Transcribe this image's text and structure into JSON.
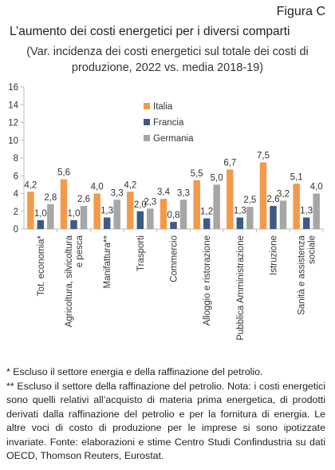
{
  "header": {
    "figure_label": "Figura C",
    "title": "L’aumento dei costi energetici per i diversi comparti",
    "subtitle_lines": [
      "(Var. incidenza dei costi energetici sul totale dei costi di",
      "produzione, 2022 vs. media 2018-19)"
    ]
  },
  "chart_data": {
    "type": "bar",
    "categories": [
      "Tot. economia*",
      "Agricoltura, silvicoltura e pesca",
      "Manifattura**",
      "Trasporti",
      "Commercio",
      "Alloggio e ristorazione",
      "Pubblica Amministrazione",
      "Istruzione",
      "Sanità e assistenza sociale"
    ],
    "series": [
      {
        "name": "Italia",
        "color": "#F39A4A",
        "values": [
          4.2,
          5.6,
          4.0,
          4.2,
          3.4,
          5.5,
          6.7,
          7.5,
          5.1
        ]
      },
      {
        "name": "Francia",
        "color": "#3E5A84",
        "values": [
          1.0,
          1.0,
          1.3,
          2.0,
          0.8,
          1.2,
          1.3,
          2.6,
          1.3
        ]
      },
      {
        "name": "Germania",
        "color": "#A6A6A6",
        "values": [
          2.8,
          2.6,
          3.3,
          2.3,
          3.3,
          5.0,
          2.5,
          3.2,
          4.0
        ]
      }
    ],
    "data_labels": [
      [
        "4,2",
        "5,6",
        "4,0",
        "4,2",
        "3,4",
        "5,5",
        "6,7",
        "7,5",
        "5,1"
      ],
      [
        "1,0",
        "1,0",
        "1,3",
        "2,0",
        "0,8",
        "1,2",
        "1,3",
        "2,6",
        "1,3"
      ],
      [
        "2,8",
        "2,6",
        "3,3",
        "2,3",
        "3,3",
        "5,0",
        "2,5",
        "3,2",
        "4,0"
      ]
    ],
    "ylim": [
      0,
      16
    ],
    "yticks": [
      0,
      2,
      4,
      6,
      8,
      10,
      12,
      14,
      16
    ],
    "ytick_labels": [
      "0",
      "2",
      "4",
      "6",
      "8",
      "10",
      "12",
      "14",
      "16"
    ],
    "grid": false,
    "legend_position": "top-center"
  },
  "notes": [
    "* Escluso il settore energia e della raffinazione del petrolio.",
    "** Escluso il settore della raffinazione del petrolio. Nota: i costi energetici sono quelli relativi all’acquisto di materia prima energetica, di prodotti derivati dalla raffinazione del petrolio e per la fornitura di energia. Le altre voci di costo di produzione per le imprese si sono ipotizzate invariate. Fonte: elaborazioni e stime Centro Studi Confindustria su dati OECD, Thomson Reuters, Eurostat."
  ]
}
